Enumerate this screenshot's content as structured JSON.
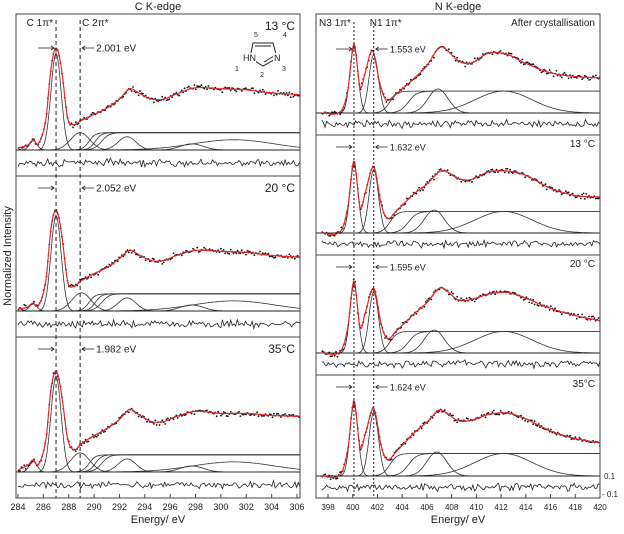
{
  "ylabel": "Normalized Intensity",
  "chart_data": [
    {
      "type": "line",
      "edge_title": "C K-edge",
      "xlabel": "Energy/ eV",
      "xlim": [
        284,
        306.5
      ],
      "xticks": [
        284,
        286,
        288,
        290,
        292,
        294,
        296,
        298,
        300,
        302,
        304,
        306
      ],
      "peak_lines": [
        287.0,
        288.9
      ],
      "peak_labels": [
        "C 1π*",
        "C 2π*"
      ],
      "panels": [
        {
          "label": "13 °C",
          "separation": "2.001 eV",
          "inset": {
            "atoms": [
              "HN",
              "N"
            ],
            "numbers": [
              "1",
              "2",
              "3",
              "4",
              "5"
            ]
          },
          "fit": [
            [
              284,
              0.02
            ],
            [
              284.8,
              0.05
            ],
            [
              285.2,
              0.1
            ],
            [
              285.6,
              0.06
            ],
            [
              286.2,
              0.3
            ],
            [
              286.6,
              0.8
            ],
            [
              287.0,
              1.0
            ],
            [
              287.4,
              0.82
            ],
            [
              287.9,
              0.32
            ],
            [
              288.3,
              0.25
            ],
            [
              289,
              0.29
            ],
            [
              290,
              0.35
            ],
            [
              291,
              0.41
            ],
            [
              292,
              0.5
            ],
            [
              292.8,
              0.6
            ],
            [
              293.5,
              0.56
            ],
            [
              294.5,
              0.5
            ],
            [
              295.5,
              0.5
            ],
            [
              296.5,
              0.55
            ],
            [
              298,
              0.61
            ],
            [
              300,
              0.6
            ],
            [
              302,
              0.59
            ],
            [
              304,
              0.56
            ],
            [
              306.5,
              0.54
            ]
          ],
          "components": [
            [
              "g",
              285.2,
              0.09,
              0.3
            ],
            [
              "g",
              287.0,
              0.95,
              0.4
            ],
            [
              "g",
              288.9,
              0.17,
              0.75
            ],
            [
              "g",
              292.6,
              0.13,
              0.7
            ],
            [
              "g",
              297.7,
              0.06,
              0.9
            ],
            [
              "g",
              301,
              0.1,
              3.2
            ],
            [
              "s",
              289.6,
              0.17,
              0.5
            ],
            [
              "s",
              290.1,
              0.17,
              0.5
            ],
            [
              "s",
              290.6,
              0.17,
              0.6
            ]
          ]
        },
        {
          "label": "20 °C",
          "separation": "2.052 eV",
          "fit": [
            [
              284,
              0.02
            ],
            [
              284.8,
              0.04
            ],
            [
              285.2,
              0.08
            ],
            [
              285.6,
              0.05
            ],
            [
              286.2,
              0.3
            ],
            [
              286.6,
              0.82
            ],
            [
              287.0,
              1.0
            ],
            [
              287.4,
              0.8
            ],
            [
              287.9,
              0.3
            ],
            [
              288.3,
              0.24
            ],
            [
              289,
              0.3
            ],
            [
              290,
              0.37
            ],
            [
              291,
              0.43
            ],
            [
              292,
              0.52
            ],
            [
              292.8,
              0.6
            ],
            [
              293.5,
              0.56
            ],
            [
              294.5,
              0.5
            ],
            [
              295.5,
              0.5
            ],
            [
              296.5,
              0.55
            ],
            [
              298,
              0.6
            ],
            [
              300,
              0.59
            ],
            [
              302,
              0.58
            ],
            [
              304,
              0.55
            ],
            [
              306.5,
              0.53
            ]
          ],
          "components": [
            [
              "g",
              285.2,
              0.07,
              0.3
            ],
            [
              "g",
              287.0,
              0.95,
              0.4
            ],
            [
              "g",
              289.0,
              0.18,
              0.75
            ],
            [
              "g",
              292.6,
              0.13,
              0.7
            ],
            [
              "g",
              297.7,
              0.06,
              0.9
            ],
            [
              "g",
              301,
              0.1,
              3.2
            ],
            [
              "s",
              289.6,
              0.17,
              0.5
            ],
            [
              "s",
              290.1,
              0.17,
              0.5
            ],
            [
              "s",
              290.6,
              0.17,
              0.6
            ]
          ]
        },
        {
          "label": "35°C",
          "separation": "1.982 eV",
          "fit": [
            [
              284,
              0.02
            ],
            [
              284.8,
              0.07
            ],
            [
              285.2,
              0.12
            ],
            [
              285.6,
              0.07
            ],
            [
              286.2,
              0.32
            ],
            [
              286.6,
              0.82
            ],
            [
              287.0,
              1.0
            ],
            [
              287.4,
              0.8
            ],
            [
              287.9,
              0.34
            ],
            [
              288.4,
              0.22
            ],
            [
              289,
              0.28
            ],
            [
              290,
              0.36
            ],
            [
              291,
              0.43
            ],
            [
              292,
              0.52
            ],
            [
              292.8,
              0.62
            ],
            [
              293.5,
              0.57
            ],
            [
              294.5,
              0.5
            ],
            [
              295.5,
              0.5
            ],
            [
              296.5,
              0.55
            ],
            [
              298,
              0.6
            ],
            [
              300,
              0.58
            ],
            [
              302,
              0.58
            ],
            [
              304,
              0.56
            ],
            [
              306.5,
              0.55
            ]
          ],
          "components": [
            [
              "g",
              285.2,
              0.11,
              0.3
            ],
            [
              "g",
              287.0,
              0.95,
              0.4
            ],
            [
              "g",
              288.9,
              0.19,
              0.75
            ],
            [
              "g",
              292.6,
              0.13,
              0.7
            ],
            [
              "g",
              297.7,
              0.06,
              0.9
            ],
            [
              "g",
              301,
              0.1,
              3.2
            ],
            [
              "s",
              289.6,
              0.17,
              0.5
            ],
            [
              "s",
              290.1,
              0.17,
              0.5
            ],
            [
              "s",
              290.6,
              0.17,
              0.6
            ]
          ]
        }
      ]
    },
    {
      "type": "line",
      "edge_title": "N K-edge",
      "xlabel": "Energy/ eV",
      "xlim": [
        397.5,
        420
      ],
      "xticks": [
        398,
        400,
        402,
        404,
        406,
        408,
        410,
        412,
        414,
        416,
        418,
        420
      ],
      "residual_ticks": [
        "0.1",
        "- 0.1"
      ],
      "peak_lines": [
        400.1,
        401.7
      ],
      "peak_labels": [
        "N3 1π*",
        "N1 1π*"
      ],
      "panels": [
        {
          "label": "After crystallisation",
          "separation": "1.553 eV",
          "fit": [
            [
              397.5,
              0
            ],
            [
              399,
              0.02
            ],
            [
              399.6,
              0.3
            ],
            [
              400.1,
              0.95
            ],
            [
              400.6,
              0.35
            ],
            [
              401.0,
              0.55
            ],
            [
              401.6,
              0.85
            ],
            [
              402.2,
              0.4
            ],
            [
              402.7,
              0.18
            ],
            [
              403.5,
              0.26
            ],
            [
              405,
              0.48
            ],
            [
              406,
              0.65
            ],
            [
              407,
              0.9
            ],
            [
              407.5,
              0.88
            ],
            [
              408.5,
              0.72
            ],
            [
              409.5,
              0.68
            ],
            [
              411,
              0.82
            ],
            [
              412.5,
              0.8
            ],
            [
              414,
              0.68
            ],
            [
              416,
              0.55
            ],
            [
              418,
              0.5
            ],
            [
              420,
              0.48
            ]
          ],
          "components": [
            [
              "g",
              400.1,
              0.9,
              0.33
            ],
            [
              "g",
              401.7,
              0.8,
              0.38
            ],
            [
              "s",
              403.0,
              0.3,
              0.6
            ],
            [
              "s",
              404.5,
              0.3,
              0.7
            ],
            [
              "g",
              406.9,
              0.33,
              0.8
            ],
            [
              "g",
              412.2,
              0.3,
              2.3
            ]
          ]
        },
        {
          "label": "13 °C",
          "separation": "1.632 eV",
          "fit": [
            [
              397.5,
              0
            ],
            [
              399,
              0.02
            ],
            [
              399.6,
              0.35
            ],
            [
              400.1,
              1.0
            ],
            [
              400.6,
              0.35
            ],
            [
              401.0,
              0.55
            ],
            [
              401.7,
              0.92
            ],
            [
              402.3,
              0.4
            ],
            [
              402.8,
              0.2
            ],
            [
              403.5,
              0.3
            ],
            [
              405,
              0.55
            ],
            [
              406,
              0.68
            ],
            [
              407,
              0.85
            ],
            [
              407.5,
              0.86
            ],
            [
              408.5,
              0.76
            ],
            [
              409.5,
              0.74
            ],
            [
              411,
              0.85
            ],
            [
              412.5,
              0.86
            ],
            [
              414,
              0.8
            ],
            [
              416,
              0.62
            ],
            [
              418,
              0.52
            ],
            [
              420,
              0.5
            ]
          ],
          "components": [
            [
              "g",
              400.1,
              0.95,
              0.33
            ],
            [
              "g",
              401.7,
              0.88,
              0.38
            ],
            [
              "s",
              403.0,
              0.3,
              0.6
            ],
            [
              "s",
              404.5,
              0.3,
              0.7
            ],
            [
              "g",
              406.6,
              0.32,
              0.8
            ],
            [
              "g",
              412.2,
              0.3,
              2.3
            ]
          ]
        },
        {
          "label": "20 °C",
          "separation": "1.595 eV",
          "fit": [
            [
              397.5,
              0
            ],
            [
              399,
              0.02
            ],
            [
              399.6,
              0.35
            ],
            [
              400.1,
              1.0
            ],
            [
              400.6,
              0.35
            ],
            [
              401.0,
              0.55
            ],
            [
              401.7,
              0.9
            ],
            [
              402.3,
              0.4
            ],
            [
              402.8,
              0.2
            ],
            [
              403.5,
              0.3
            ],
            [
              405,
              0.55
            ],
            [
              406,
              0.7
            ],
            [
              407,
              0.9
            ],
            [
              407.5,
              0.88
            ],
            [
              408.5,
              0.74
            ],
            [
              409.5,
              0.74
            ],
            [
              411,
              0.82
            ],
            [
              412.5,
              0.84
            ],
            [
              414,
              0.76
            ],
            [
              416,
              0.62
            ],
            [
              418,
              0.52
            ],
            [
              420,
              0.45
            ]
          ],
          "components": [
            [
              "g",
              400.1,
              0.95,
              0.33
            ],
            [
              "g",
              401.7,
              0.85,
              0.38
            ],
            [
              "s",
              403.0,
              0.3,
              0.6
            ],
            [
              "s",
              404.5,
              0.3,
              0.7
            ],
            [
              "g",
              406.6,
              0.32,
              0.8
            ],
            [
              "g",
              412.2,
              0.3,
              2.3
            ]
          ]
        },
        {
          "label": "35°C",
          "separation": "1.624 eV",
          "fit": [
            [
              397.5,
              0
            ],
            [
              399,
              0.02
            ],
            [
              399.6,
              0.35
            ],
            [
              400.1,
              1.0
            ],
            [
              400.6,
              0.38
            ],
            [
              401.0,
              0.55
            ],
            [
              401.7,
              0.9
            ],
            [
              402.3,
              0.4
            ],
            [
              402.8,
              0.22
            ],
            [
              403.5,
              0.32
            ],
            [
              405,
              0.58
            ],
            [
              406,
              0.72
            ],
            [
              407,
              0.88
            ],
            [
              407.5,
              0.85
            ],
            [
              408.5,
              0.74
            ],
            [
              409.5,
              0.74
            ],
            [
              411,
              0.82
            ],
            [
              412.5,
              0.84
            ],
            [
              414,
              0.76
            ],
            [
              416,
              0.6
            ],
            [
              418,
              0.5
            ],
            [
              420,
              0.44
            ]
          ],
          "components": [
            [
              "g",
              400.1,
              0.95,
              0.33
            ],
            [
              "g",
              401.7,
              0.85,
              0.38
            ],
            [
              "s",
              403.0,
              0.3,
              0.6
            ],
            [
              "s",
              404.5,
              0.3,
              0.7
            ],
            [
              "g",
              406.8,
              0.32,
              0.8
            ],
            [
              "g",
              412.2,
              0.3,
              2.3
            ]
          ]
        }
      ]
    }
  ],
  "colors": {
    "fit": "#e8262a",
    "data": "#111111",
    "components": "#333333"
  }
}
